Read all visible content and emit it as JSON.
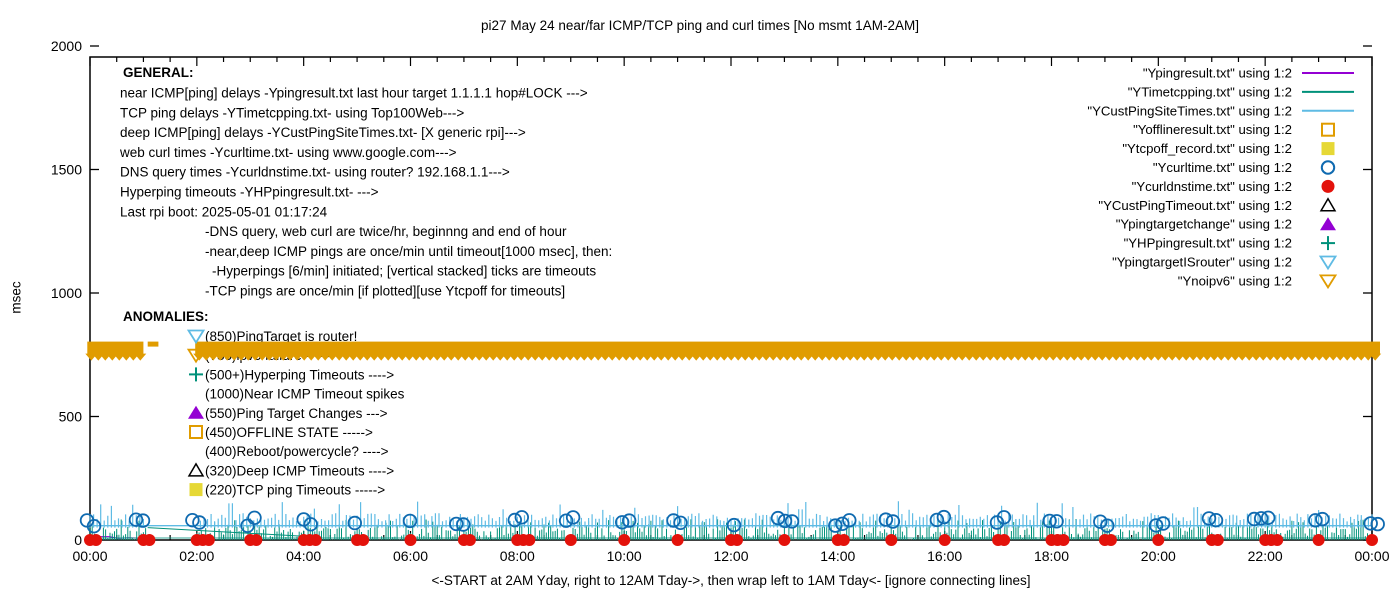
{
  "title": "pi27 May 24  near/far ICMP/TCP ping and curl times [No msmt 1AM-2AM]",
  "axes": {
    "ylabel": "msec",
    "xlabel": "<-START at 2AM Yday, right to 12AM Tday->, then wrap left to 1AM Tday<- [ignore connecting lines]",
    "y_ticks": [
      "0",
      "500",
      "1000",
      "1500",
      "2000"
    ],
    "y_range": [
      0,
      2000
    ],
    "x_tick_labels": [
      "00:00",
      "02:00",
      "04:00",
      "06:00",
      "08:00",
      "10:00",
      "12:00",
      "14:00",
      "16:00",
      "18:00",
      "20:00",
      "22:00",
      "00:00"
    ],
    "x_range_hours": [
      0,
      24
    ],
    "x_minor_tick_minutes": 30
  },
  "general": {
    "heading": "GENERAL:",
    "lines": [
      {
        "indent": 0,
        "text": "near ICMP[ping] delays -Ypingresult.txt last hour target 1.1.1.1 hop#LOCK --->"
      },
      {
        "indent": 0,
        "text": "TCP ping delays -YTimetcpping.txt- using Top100Web--->"
      },
      {
        "indent": 0,
        "text": "deep ICMP[ping] delays -YCustPingSiteTimes.txt- [X generic rpi]--->"
      },
      {
        "indent": 0,
        "text": "web curl times -Ycurltime.txt- using www.google.com--->"
      },
      {
        "indent": 0,
        "text": "DNS query times -Ycurldnstime.txt- using router? 192.168.1.1--->"
      },
      {
        "indent": 0,
        "text": "Hyperping timeouts -YHPpingresult.txt- --->"
      },
      {
        "indent": 0,
        "text": "Last rpi boot: 2025-05-01 01:17:24"
      },
      {
        "indent": 85,
        "text": "-DNS query, web curl are twice/hr, beginnng and end of hour"
      },
      {
        "indent": 85,
        "text": "-near,deep ICMP pings are once/min until timeout[1000 msec], then:"
      },
      {
        "indent": 92,
        "text": "-Hyperpings [6/min] initiated; [vertical stacked] ticks are timeouts"
      },
      {
        "indent": 85,
        "text": "-TCP pings are once/min [if plotted][use Ytcpoff for timeouts]"
      }
    ]
  },
  "anomalies": {
    "heading": "ANOMALIES:",
    "items": [
      {
        "marker": "open-triangle-down",
        "color": "#5fbbe4",
        "text": "(850)PingTarget is router!"
      },
      {
        "marker": "open-triangle-down",
        "color": "#e09c00",
        "text": "(785)ipv6 failure ---->"
      },
      {
        "marker": "plus",
        "color": "#00917a",
        "text": "(500+)Hyperping Timeouts ---->"
      },
      {
        "marker": "none",
        "color": "#000000",
        "text": "(1000)Near ICMP Timeout spikes"
      },
      {
        "marker": "filled-triangle-up",
        "color": "#9400d3",
        "text": "(550)Ping Target Changes --->"
      },
      {
        "marker": "open-square",
        "color": "#e09c00",
        "text": "(450)OFFLINE STATE ----->"
      },
      {
        "marker": "none",
        "color": "#000000",
        "text": "(400)Reboot/powercycle? ---->"
      },
      {
        "marker": "open-triangle-up",
        "color": "#000000",
        "text": "(320)Deep ICMP Timeouts ---->"
      },
      {
        "marker": "filled-square",
        "color": "#e6d835",
        "text": "(220)TCP ping Timeouts ----->"
      }
    ]
  },
  "legend": {
    "items": [
      {
        "label": "\"Ypingresult.txt\" using 1:2",
        "marker": "line",
        "color": "#9400d3"
      },
      {
        "label": "\"YTimetcpping.txt\" using 1:2",
        "marker": "line",
        "color": "#00917a"
      },
      {
        "label": "\"YCustPingSiteTimes.txt\" using 1:2",
        "marker": "line",
        "color": "#5fbbe4"
      },
      {
        "label": "\"Yofflineresult.txt\" using 1:2",
        "marker": "open-square",
        "color": "#e09c00"
      },
      {
        "label": "\"Ytcpoff_record.txt\" using 1:2",
        "marker": "filled-square",
        "color": "#e6d835"
      },
      {
        "label": "\"Ycurltime.txt\" using 1:2",
        "marker": "open-circle",
        "color": "#0f6ab0"
      },
      {
        "label": "\"Ycurldnstime.txt\" using 1:2",
        "marker": "filled-circle",
        "color": "#e3120b"
      },
      {
        "label": "\"YCustPingTimeout.txt\" using 1:2",
        "marker": "open-triangle-up",
        "color": "#000000"
      },
      {
        "label": "\"Ypingtargetchange\" using 1:2",
        "marker": "filled-triangle-up",
        "color": "#9400d3"
      },
      {
        "label": "\"YHPpingresult.txt\" using 1:2",
        "marker": "plus",
        "color": "#00917a"
      },
      {
        "label": "\"YpingtargetISrouter\" using 1:2",
        "marker": "open-triangle-down",
        "color": "#5fbbe4"
      },
      {
        "label": "\"Ynoipv6\" using 1:2",
        "marker": "open-triangle-down",
        "color": "#e09c00"
      }
    ]
  },
  "chart_data": {
    "type": "scatter",
    "no_measurement_window_hours": [
      1.05,
      2.0
    ],
    "noise_seed": 20250524,
    "series": [
      {
        "file": "Ypingresult.txt",
        "style": "line",
        "color": "#9400d3",
        "summary": "near ICMP ping delays, ~8-14 msec flat all day, hidden under TCP grass",
        "baseline_msec": 10,
        "jitter_msec": 5
      },
      {
        "file": "YTimetcpping.txt",
        "style": "impulse-grass",
        "color": "#00917a",
        "summary": "TCP ping delays once/min, dense spikes 0-85 msec, absent 1AM-2AM",
        "min_msec": 0,
        "max_msec": 85,
        "step_minutes": 2.5
      },
      {
        "file": "YCustPingSiteTimes.txt",
        "style": "baseline-upticks",
        "color": "#5fbbe4",
        "summary": "deep ICMP delays, baseline ~58 msec with up-ticks to ~150 msec, absent 1AM-2AM",
        "baseline_msec": 58,
        "tick_min_msec": 75,
        "tick_max_msec": 150,
        "step_minutes": 4
      },
      {
        "file": "Yofflineresult.txt",
        "style": "open-square",
        "color": "#e09c00",
        "points": []
      },
      {
        "file": "Ytcpoff_record.txt",
        "style": "filled-square",
        "color": "#e6d835",
        "points": []
      },
      {
        "file": "Ycurltime.txt",
        "style": "open-circle",
        "color": "#0f6ab0",
        "summary": "web curl times twice/hr, pairs of circles clustered at each hour boundary, ~55-95 msec",
        "cluster_hours": [
          0,
          1,
          2,
          3,
          4,
          5,
          6,
          7,
          8,
          9,
          10,
          11,
          12,
          13,
          14,
          15,
          16,
          17,
          18,
          19,
          20,
          21,
          22,
          23,
          24
        ],
        "y_msec_range": [
          55,
          95
        ]
      },
      {
        "file": "Ycurldnstime.txt",
        "style": "filled-circle",
        "color": "#e3120b",
        "summary": "DNS query times ~0 msec at every hour",
        "x_hours": [
          0,
          1,
          2,
          3,
          4,
          5,
          6,
          7,
          8,
          9,
          10,
          11,
          12,
          13,
          14,
          15,
          16,
          17,
          18,
          19,
          20,
          21,
          22,
          23,
          24
        ],
        "y_msec": 0
      },
      {
        "file": "YCustPingTimeout.txt",
        "style": "open-triangle-up",
        "color": "#000000",
        "points": []
      },
      {
        "file": "Ypingtargetchange",
        "style": "filled-triangle-up",
        "color": "#9400d3",
        "points": []
      },
      {
        "file": "YHPpingresult.txt",
        "style": "plus",
        "color": "#00917a",
        "points": []
      },
      {
        "file": "YpingtargetISrouter",
        "style": "open-triangle-down",
        "color": "#5fbbe4",
        "points": []
      },
      {
        "file": "Ynoipv6",
        "style": "open-triangle-down-band",
        "color": "#e09c00",
        "summary": "ipv6 failure markers all day at ~775 msec forming a solid band, gap 1AM-2AM",
        "band_y_msec": 775,
        "band_segments_hours": [
          [
            -0.05,
            1.0
          ],
          [
            1.08,
            1.28
          ],
          [
            1.97,
            24.15
          ]
        ]
      }
    ],
    "artifacts": {
      "connecting_line": {
        "from_hour": 1.08,
        "from_msec": 50,
        "to_hour": 4.0,
        "to_msec": 15,
        "color": "#00917a"
      }
    }
  }
}
